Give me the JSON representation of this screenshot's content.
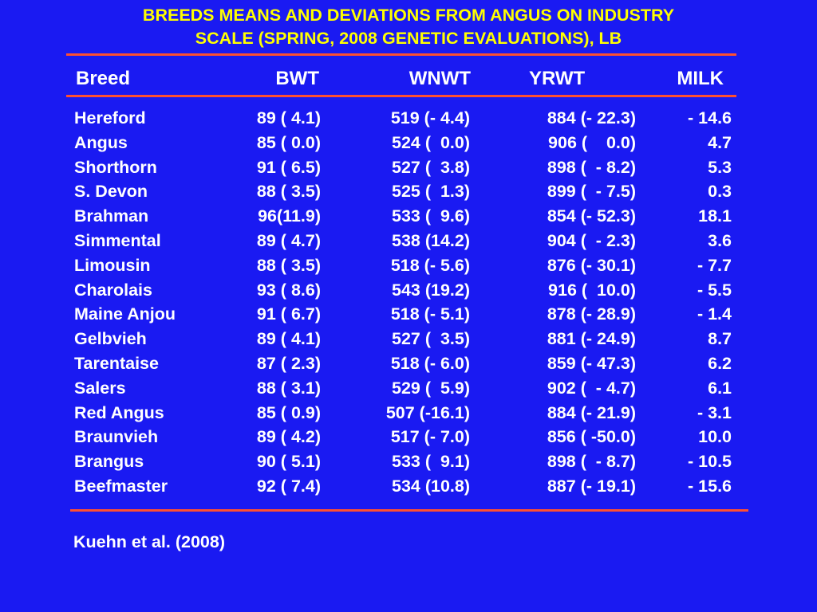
{
  "title": {
    "line1": "BREEDS MEANS AND DEVIATIONS FROM ANGUS  ON INDUSTRY",
    "line2": "SCALE (SPRING, 2008 GENETIC EVALUATIONS), LB"
  },
  "header": {
    "breed": "Breed",
    "bwt": "BWT",
    "wnwt": "WNWT",
    "yrwt": "YRWT",
    "milk": "MILK"
  },
  "rows": [
    {
      "breed": "Hereford",
      "bwt": "89 ( 4.1)",
      "wnwt": "519 (- 4.4)",
      "yrwt": "884 (- 22.3)",
      "milk": "- 14.6"
    },
    {
      "breed": "Angus",
      "bwt": "85 ( 0.0)",
      "wnwt": "524 (  0.0)",
      "yrwt": "906 (    0.0)",
      "milk": "4.7"
    },
    {
      "breed": "Shorthorn",
      "bwt": "91 ( 6.5)",
      "wnwt": "527 (  3.8)",
      "yrwt": "898 (  - 8.2)",
      "milk": "5.3"
    },
    {
      "breed": "S. Devon",
      "bwt": "88 ( 3.5)",
      "wnwt": "525 (  1.3)",
      "yrwt": "899 (  - 7.5)",
      "milk": "0.3"
    },
    {
      "breed": "Brahman",
      "bwt": "96(11.9)",
      "wnwt": "533 (  9.6)",
      "yrwt": "854 (- 52.3)",
      "milk": "18.1"
    },
    {
      "breed": "Simmental",
      "bwt": "89 ( 4.7)",
      "wnwt": "538 (14.2)",
      "yrwt": "904 (  - 2.3)",
      "milk": "3.6"
    },
    {
      "breed": "Limousin",
      "bwt": "88 ( 3.5)",
      "wnwt": "518 (- 5.6)",
      "yrwt": "876 (- 30.1)",
      "milk": "- 7.7"
    },
    {
      "breed": "Charolais",
      "bwt": "93 ( 8.6)",
      "wnwt": "543 (19.2)",
      "yrwt": "916 (  10.0)",
      "milk": "- 5.5"
    },
    {
      "breed": "Maine Anjou",
      "bwt": "91 ( 6.7)",
      "wnwt": "518 (- 5.1)",
      "yrwt": "878 (- 28.9)",
      "milk": "- 1.4"
    },
    {
      "breed": "Gelbvieh",
      "bwt": "89 ( 4.1)",
      "wnwt": "527 (  3.5)",
      "yrwt": "881 (- 24.9)",
      "milk": "8.7"
    },
    {
      "breed": "Tarentaise",
      "bwt": "87 ( 2.3)",
      "wnwt": "518 (- 6.0)",
      "yrwt": "859 (- 47.3)",
      "milk": "6.2"
    },
    {
      "breed": "Salers",
      "bwt": "88 ( 3.1)",
      "wnwt": "529 (  5.9)",
      "yrwt": "902 (  - 4.7)",
      "milk": "6.1"
    },
    {
      "breed": "Red Angus",
      "bwt": "85 ( 0.9)",
      "wnwt": "507 (-16.1)",
      "yrwt": "884 (- 21.9)",
      "milk": "- 3.1"
    },
    {
      "breed": "Braunvieh",
      "bwt": "89 ( 4.2)",
      "wnwt": "517 (- 7.0)",
      "yrwt": "856 ( -50.0)",
      "milk": "10.0"
    },
    {
      "breed": "Brangus",
      "bwt": "90 ( 5.1)",
      "wnwt": "533 (  9.1)",
      "yrwt": "898 (  - 8.7)",
      "milk": "- 10.5"
    },
    {
      "breed": "Beefmaster",
      "bwt": "92 ( 7.4)",
      "wnwt": "534 (10.8)",
      "yrwt": "887 (- 19.1)",
      "milk": "- 15.6"
    }
  ],
  "citation": "Kuehn et al. (2008)",
  "colors": {
    "background": "#1A1AF2",
    "title": "#FFFF00",
    "text": "#FFFFFF",
    "rule": "#FF5030"
  }
}
